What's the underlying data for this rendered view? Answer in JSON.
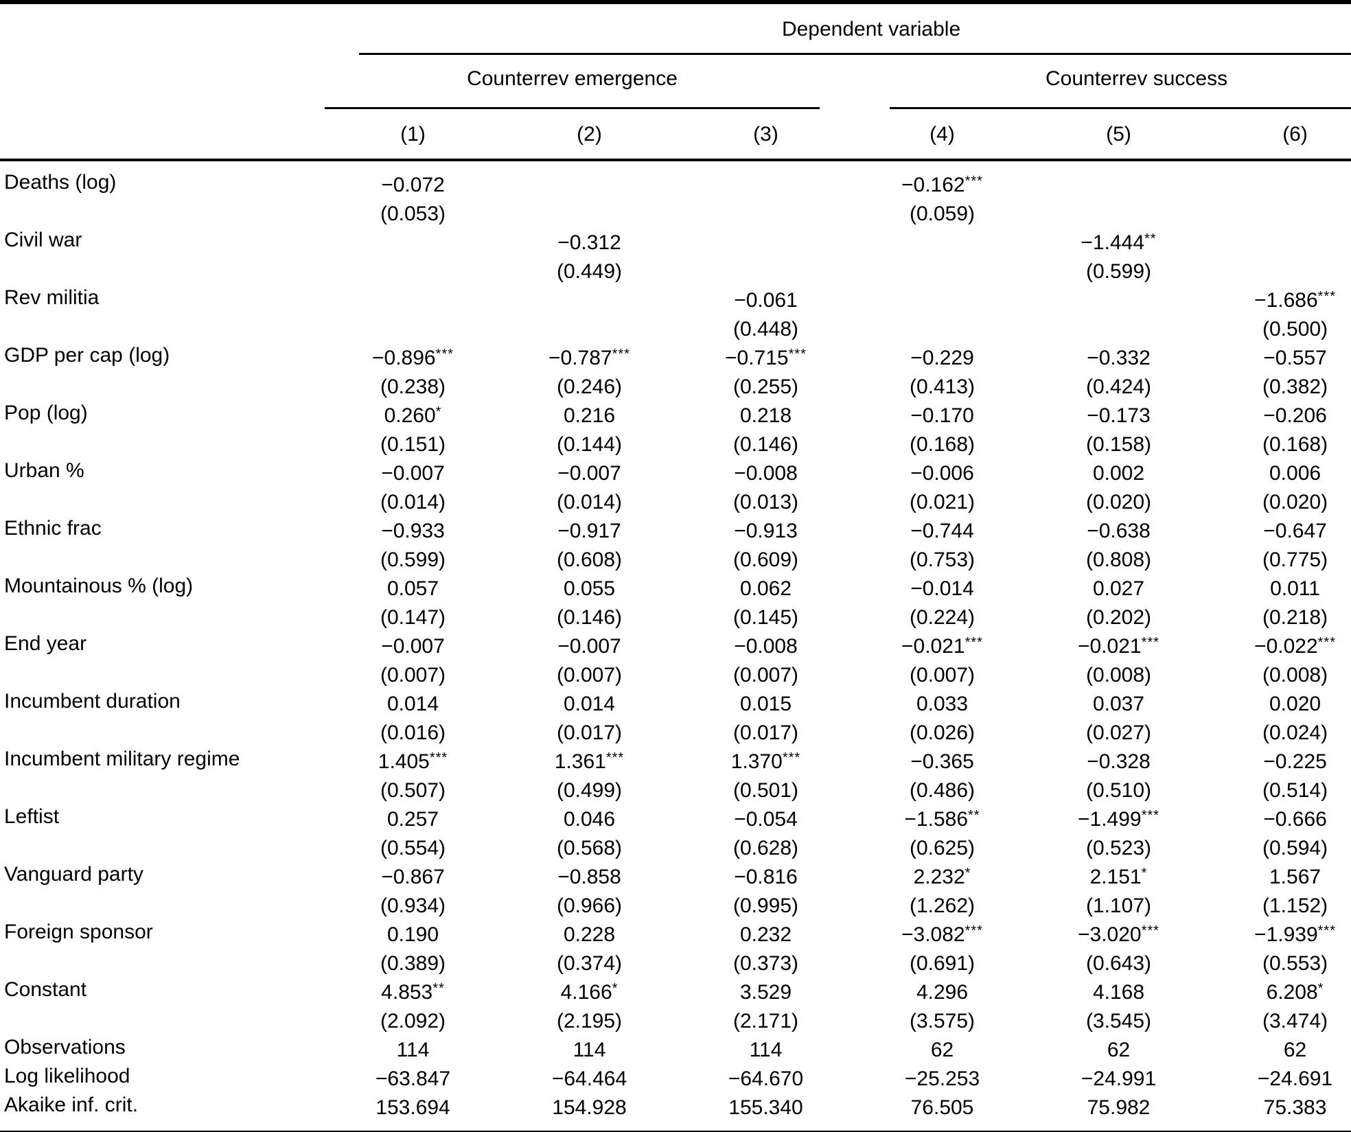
{
  "colors": {
    "text": "#000000",
    "background": "#ffffff",
    "rule": "#000000"
  },
  "table": {
    "dependent_variable_label": "Dependent variable",
    "groups": [
      {
        "label": "Counterrev emergence"
      },
      {
        "label": "Counterrev success"
      }
    ],
    "column_numbers": [
      "(1)",
      "(2)",
      "(3)",
      "(4)",
      "(5)",
      "(6)"
    ],
    "rows": [
      {
        "label": "Deaths (log)",
        "coef": [
          "−0.072",
          "",
          "",
          "−0.162***",
          "",
          ""
        ],
        "se": [
          "(0.053)",
          "",
          "",
          "(0.059)",
          "",
          ""
        ]
      },
      {
        "label": "Civil war",
        "coef": [
          "",
          "−0.312",
          "",
          "",
          "−1.444**",
          ""
        ],
        "se": [
          "",
          "(0.449)",
          "",
          "",
          "(0.599)",
          ""
        ]
      },
      {
        "label": "Rev militia",
        "coef": [
          "",
          "",
          "−0.061",
          "",
          "",
          "−1.686***"
        ],
        "se": [
          "",
          "",
          "(0.448)",
          "",
          "",
          "(0.500)"
        ]
      },
      {
        "label": "GDP per cap (log)",
        "coef": [
          "−0.896***",
          "−0.787***",
          "−0.715***",
          "−0.229",
          "−0.332",
          "−0.557"
        ],
        "se": [
          "(0.238)",
          "(0.246)",
          "(0.255)",
          "(0.413)",
          "(0.424)",
          "(0.382)"
        ]
      },
      {
        "label": "Pop (log)",
        "coef": [
          "0.260*",
          "0.216",
          "0.218",
          "−0.170",
          "−0.173",
          "−0.206"
        ],
        "se": [
          "(0.151)",
          "(0.144)",
          "(0.146)",
          "(0.168)",
          "(0.158)",
          "(0.168)"
        ]
      },
      {
        "label": "Urban %",
        "coef": [
          "−0.007",
          "−0.007",
          "−0.008",
          "−0.006",
          "0.002",
          "0.006"
        ],
        "se": [
          "(0.014)",
          "(0.014)",
          "(0.013)",
          "(0.021)",
          "(0.020)",
          "(0.020)"
        ]
      },
      {
        "label": "Ethnic frac",
        "coef": [
          "−0.933",
          "−0.917",
          "−0.913",
          "−0.744",
          "−0.638",
          "−0.647"
        ],
        "se": [
          "(0.599)",
          "(0.608)",
          "(0.609)",
          "(0.753)",
          "(0.808)",
          "(0.775)"
        ]
      },
      {
        "label": "Mountainous % (log)",
        "coef": [
          "0.057",
          "0.055",
          "0.062",
          "−0.014",
          "0.027",
          "0.011"
        ],
        "se": [
          "(0.147)",
          "(0.146)",
          "(0.145)",
          "(0.224)",
          "(0.202)",
          "(0.218)"
        ]
      },
      {
        "label": "End year",
        "coef": [
          "−0.007",
          "−0.007",
          "−0.008",
          "−0.021***",
          "−0.021***",
          "−0.022***"
        ],
        "se": [
          "(0.007)",
          "(0.007)",
          "(0.007)",
          "(0.007)",
          "(0.008)",
          "(0.008)"
        ]
      },
      {
        "label": "Incumbent duration",
        "coef": [
          "0.014",
          "0.014",
          "0.015",
          "0.033",
          "0.037",
          "0.020"
        ],
        "se": [
          "(0.016)",
          "(0.017)",
          "(0.017)",
          "(0.026)",
          "(0.027)",
          "(0.024)"
        ]
      },
      {
        "label": "Incumbent military regime",
        "coef": [
          "1.405***",
          "1.361***",
          "1.370***",
          "−0.365",
          "−0.328",
          "−0.225"
        ],
        "se": [
          "(0.507)",
          "(0.499)",
          "(0.501)",
          "(0.486)",
          "(0.510)",
          "(0.514)"
        ]
      },
      {
        "label": "Leftist",
        "coef": [
          "0.257",
          "0.046",
          "−0.054",
          "−1.586**",
          "−1.499***",
          "−0.666"
        ],
        "se": [
          "(0.554)",
          "(0.568)",
          "(0.628)",
          "(0.625)",
          "(0.523)",
          "(0.594)"
        ]
      },
      {
        "label": "Vanguard party",
        "coef": [
          "−0.867",
          "−0.858",
          "−0.816",
          "2.232*",
          "2.151*",
          "1.567"
        ],
        "se": [
          "(0.934)",
          "(0.966)",
          "(0.995)",
          "(1.262)",
          "(1.107)",
          "(1.152)"
        ]
      },
      {
        "label": "Foreign sponsor",
        "coef": [
          "0.190",
          "0.228",
          "0.232",
          "−3.082***",
          "−3.020***",
          "−1.939***"
        ],
        "se": [
          "(0.389)",
          "(0.374)",
          "(0.373)",
          "(0.691)",
          "(0.643)",
          "(0.553)"
        ]
      },
      {
        "label": "Constant",
        "coef": [
          "4.853**",
          "4.166*",
          "3.529",
          "4.296",
          "4.168",
          "6.208*"
        ],
        "se": [
          "(2.092)",
          "(2.195)",
          "(2.171)",
          "(3.575)",
          "(3.545)",
          "(3.474)"
        ]
      }
    ],
    "summary": [
      {
        "label": "Observations",
        "values": [
          "114",
          "114",
          "114",
          "62",
          "62",
          "62"
        ]
      },
      {
        "label": "Log likelihood",
        "values": [
          "−63.847",
          "−64.464",
          "−64.670",
          "−25.253",
          "−24.991",
          "−24.691"
        ]
      },
      {
        "label": "Akaike inf. crit.",
        "values": [
          "153.694",
          "154.928",
          "155.340",
          "76.505",
          "75.982",
          "75.383"
        ]
      }
    ]
  }
}
